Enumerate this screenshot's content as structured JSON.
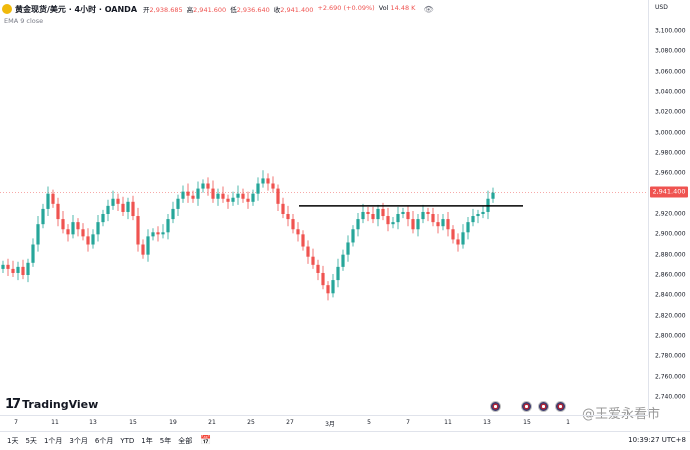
{
  "symbol": {
    "name": "黄金现货/美元 · 4小时 · OANDA",
    "icon": "gold-coin-icon"
  },
  "ohlc": {
    "open_label": "开",
    "open": "2,938.685",
    "high_label": "高",
    "high": "2,941.600",
    "low_label": "低",
    "low": "2,936.640",
    "close_label": "收",
    "close": "2,941.400",
    "change": "+2.690 (+0.09%)",
    "volume_label": "Vol",
    "volume": "14.48 K"
  },
  "indicator": {
    "label": "EMA 9 close"
  },
  "price_axis": {
    "currency": "USD",
    "labels": [
      "3,100.000",
      "3,080.000",
      "3,060.000",
      "3,040.000",
      "3,020.000",
      "3,000.000",
      "2,980.000",
      "2,960.000",
      "2,920.000",
      "2,900.000",
      "2,880.000",
      "2,860.000",
      "2,840.000",
      "2,820.000",
      "2,800.000",
      "2,780.000",
      "2,760.000",
      "2,740.000"
    ],
    "current_price": "2,941.400"
  },
  "time_axis": {
    "labels": [
      "7",
      "11",
      "13",
      "15",
      "19",
      "21",
      "25",
      "27",
      "3月",
      "5",
      "7",
      "11",
      "13",
      "15",
      "1"
    ]
  },
  "timeframes": [
    "1天",
    "5天",
    "1个月",
    "3个月",
    "6个月",
    "YTD",
    "1年",
    "5年",
    "全部"
  ],
  "clock": "10:39:27 UTC+8",
  "branding": {
    "logo_text": "TradingView"
  },
  "watermark": "@王爱永看市",
  "colors": {
    "up": "#26a69a",
    "down": "#ef5350",
    "trendline": "#000000"
  },
  "chart_data": {
    "type": "candlestick",
    "title": "",
    "xlabel": "",
    "ylabel": "USD",
    "ylim": [
      2730,
      3110
    ],
    "x_ticks": [
      "7",
      "11",
      "13",
      "15",
      "19",
      "21",
      "25",
      "27",
      "3月",
      "5",
      "7",
      "11",
      "13",
      "15",
      "1"
    ],
    "close_series_note_free": true,
    "close": [
      2870,
      2866,
      2862,
      2868,
      2860,
      2872,
      2890,
      2910,
      2925,
      2940,
      2930,
      2915,
      2905,
      2900,
      2912,
      2905,
      2898,
      2890,
      2900,
      2912,
      2920,
      2928,
      2935,
      2930,
      2922,
      2932,
      2918,
      2890,
      2880,
      2898,
      2902,
      2900,
      2902,
      2915,
      2925,
      2935,
      2942,
      2938,
      2935,
      2945,
      2950,
      2945,
      2935,
      2940,
      2935,
      2932,
      2936,
      2940,
      2935,
      2932,
      2940,
      2950,
      2955,
      2950,
      2945,
      2930,
      2920,
      2915,
      2905,
      2900,
      2888,
      2878,
      2870,
      2862,
      2850,
      2842,
      2855,
      2868,
      2880,
      2892,
      2905,
      2915,
      2922,
      2920,
      2915,
      2925,
      2918,
      2910,
      2912,
      2920,
      2922,
      2915,
      2905,
      2915,
      2922,
      2920,
      2912,
      2908,
      2915,
      2905,
      2895,
      2890,
      2902,
      2912,
      2918,
      2920,
      2922,
      2935,
      2941
    ],
    "trendline": {
      "from": [
        59,
        2928
      ],
      "to": [
        98,
        2928
      ]
    }
  }
}
